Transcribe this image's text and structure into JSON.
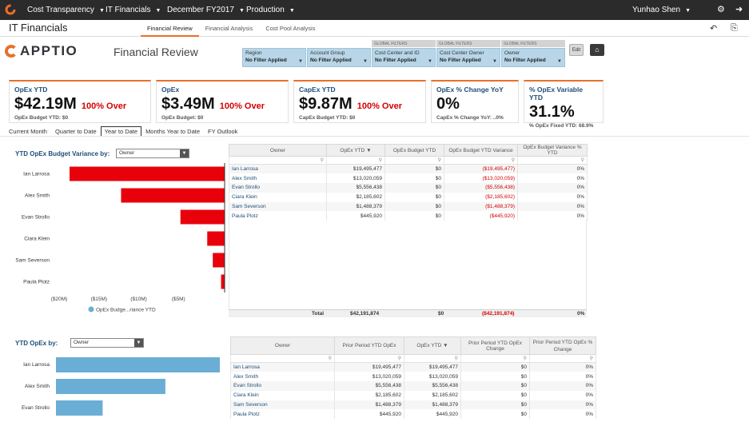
{
  "topnav": {
    "menus": [
      "Cost Transparency",
      "IT Financials",
      "December FY2017",
      "Production"
    ],
    "user": "Yunhao Shen",
    "icons": [
      "gear-icon",
      "arrow-right-icon"
    ]
  },
  "subhead": {
    "title": "IT Financials",
    "tabs": [
      "Financial Review",
      "Financial Analysis",
      "Cost Pool Analysis"
    ],
    "active_tab": 0
  },
  "brand": {
    "word": "APPTIO",
    "page_heading": "Financial Review"
  },
  "filters": [
    {
      "global_tag": "",
      "label": "Region",
      "value": "No Filter Applied"
    },
    {
      "global_tag": "",
      "label": "Account Group",
      "value": "No Filter Applied"
    },
    {
      "global_tag": "GLOBAL FILTERS",
      "label": "Cost Center and ID",
      "value": "No Filter Applied"
    },
    {
      "global_tag": "GLOBAL FILTERS",
      "label": "Cost Center Owner",
      "value": "No Filter Applied"
    },
    {
      "global_tag": "GLOBAL FILTERS",
      "label": "Owner",
      "value": "No Filter Applied"
    }
  ],
  "edit_button": "Edit",
  "kpis": [
    {
      "title": "OpEx YTD",
      "value": "$42.19M",
      "over": "100% Over",
      "sub": "OpEx Budget YTD: $0"
    },
    {
      "title": "OpEx",
      "value": "$3.49M",
      "over": "100% Over",
      "sub": "OpEx Budget: $0"
    },
    {
      "title": "CapEx YTD",
      "value": "$9.87M",
      "over": "100% Over",
      "sub": "CapEx Budget YTD: $0"
    },
    {
      "title": "OpEx % Change YoY",
      "value": "0%",
      "over": "",
      "sub": "CapEx % Change YoY: ..0%"
    },
    {
      "title": "% OpEx Variable YTD",
      "value": "31.1%",
      "over": "",
      "sub": "% OpEx Fixed YTD: 68.9%"
    }
  ],
  "period_tabs": [
    "Current Month",
    "Quarter to Date",
    "Year to Date",
    "Months Year to Date",
    "FY Outlook"
  ],
  "active_period": 2,
  "variance_panel": {
    "title": "YTD OpEx Budget Variance by:",
    "select_value": "Owner",
    "chart_data": {
      "type": "bar",
      "orientation": "horizontal",
      "categories": [
        "Ian Larrosa",
        "Alex Smith",
        "Evan Strollo",
        "Ciara Klein",
        "Sam Severson",
        "Paula Plotz"
      ],
      "series": [
        {
          "name": "OpEx Budge...riance YTD",
          "values": [
            -19495477,
            -13020059,
            -5556438,
            -2185602,
            -1488379,
            -445920
          ]
        }
      ],
      "xlim": [
        -20000000,
        0
      ],
      "x_ticks": [
        "($20M)",
        "($15M)",
        "($10M)",
        "($5M)"
      ],
      "colors": {
        "bars": "#e8000b",
        "legend_dot": "#6aaed6"
      },
      "legend_position": "bottom"
    },
    "table": {
      "headers": [
        "Owner",
        "OpEx YTD",
        "OpEx Budget YTD",
        "OpEx Budget YTD Variance",
        "OpEx Budget Variance % YTD"
      ],
      "rows": [
        [
          "Ian Larrosa",
          "$19,495,477",
          "$0",
          "($19,495,477)",
          "0%"
        ],
        [
          "Alex Smith",
          "$13,020,059",
          "$0",
          "($13,020,059)",
          "0%"
        ],
        [
          "Evan Strollo",
          "$5,556,438",
          "$0",
          "($5,556,438)",
          "0%"
        ],
        [
          "Ciara Klein",
          "$2,185,602",
          "$0",
          "($2,185,602)",
          "0%"
        ],
        [
          "Sam Severson",
          "$1,488,379",
          "$0",
          "($1,488,379)",
          "0%"
        ],
        [
          "Paula Plotz",
          "$445,920",
          "$0",
          "($445,920)",
          "0%"
        ]
      ],
      "total": [
        "Total",
        "$42,191,874",
        "$0",
        "($42,191,874)",
        "0%"
      ]
    }
  },
  "opex_panel": {
    "title": "YTD OpEx by:",
    "select_value": "Owner",
    "chart_data": {
      "type": "bar",
      "orientation": "horizontal",
      "categories": [
        "Ian Larrosa",
        "Alex Smith",
        "Evan Strollo"
      ],
      "series": [
        {
          "name": "",
          "values": [
            19495477,
            13020059,
            5556438
          ]
        }
      ],
      "colors": {
        "bars": "#6aaed6"
      }
    },
    "table": {
      "headers": [
        "Owner",
        "Prior Period YTD OpEx",
        "OpEx YTD",
        "Prior Period YTD OpEx Change",
        "Prior Period YTD OpEx % Change"
      ],
      "rows": [
        [
          "Ian Larrosa",
          "$19,495,477",
          "$19,495,477",
          "$0",
          "0%"
        ],
        [
          "Alex Smith",
          "$13,020,059",
          "$13,020,059",
          "$0",
          "0%"
        ],
        [
          "Evan Strollo",
          "$5,556,438",
          "$5,556,438",
          "$0",
          "0%"
        ],
        [
          "Ciara Klein",
          "$2,185,602",
          "$2,185,602",
          "$0",
          "0%"
        ],
        [
          "Sam Severson",
          "$1,488,379",
          "$1,488,379",
          "$0",
          "0%"
        ],
        [
          "Paula Plotz",
          "$445,920",
          "$445,920",
          "$0",
          "0%"
        ]
      ]
    }
  }
}
